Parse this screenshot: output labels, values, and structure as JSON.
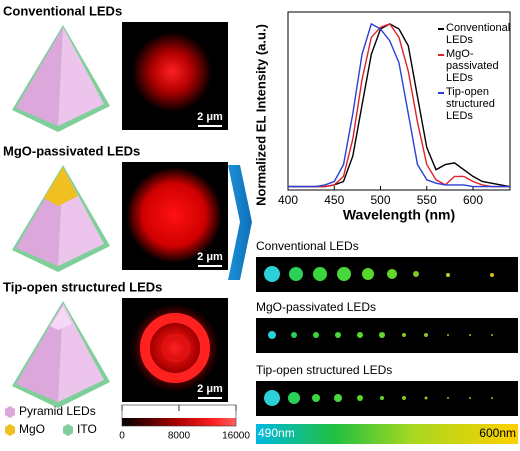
{
  "chart_data": {
    "type": "line",
    "xlabel": "Wavelength (nm)",
    "ylabel": "Normalized EL Intensity (a.u.)",
    "x": [
      400,
      410,
      420,
      430,
      440,
      450,
      460,
      470,
      480,
      490,
      500,
      510,
      520,
      530,
      540,
      550,
      560,
      570,
      580,
      590,
      600,
      610,
      620,
      630,
      640
    ],
    "xlim": [
      400,
      640
    ],
    "xticks": [
      400,
      450,
      500,
      550,
      600
    ],
    "ylim": [
      0,
      1.05
    ],
    "series": [
      {
        "name": "Conventional LEDs",
        "color": "#000000",
        "values": [
          0.02,
          0.02,
          0.02,
          0.02,
          0.02,
          0.03,
          0.05,
          0.2,
          0.5,
          0.8,
          0.95,
          0.98,
          0.95,
          0.85,
          0.55,
          0.25,
          0.12,
          0.15,
          0.16,
          0.12,
          0.08,
          0.05,
          0.04,
          0.03,
          0.02
        ]
      },
      {
        "name": "MgO-passivated LEDs",
        "color": "#e0202a",
        "values": [
          0.02,
          0.02,
          0.02,
          0.02,
          0.02,
          0.03,
          0.08,
          0.3,
          0.65,
          0.9,
          0.96,
          0.98,
          0.9,
          0.7,
          0.4,
          0.15,
          0.06,
          0.03,
          0.08,
          0.08,
          0.05,
          0.03,
          0.02,
          0.02,
          0.02
        ]
      },
      {
        "name": "Tip-open structured LEDs",
        "color": "#2a3fd8",
        "values": [
          0.02,
          0.02,
          0.02,
          0.02,
          0.03,
          0.05,
          0.15,
          0.45,
          0.8,
          0.98,
          0.95,
          0.88,
          0.75,
          0.45,
          0.15,
          0.06,
          0.04,
          0.03,
          0.03,
          0.03,
          0.02,
          0.02,
          0.02,
          0.02,
          0.02
        ]
      }
    ]
  },
  "panels": [
    {
      "label": "Conventional LEDs",
      "scale": "2 μm"
    },
    {
      "label": "MgO-passivated LEDs",
      "scale": "2 μm"
    },
    {
      "label": "Tip-open structured LEDs",
      "scale": "2 μm"
    }
  ],
  "legend": [
    "Pyramid LEDs",
    "MgO",
    "ITO"
  ],
  "colorbar": {
    "lim": [
      0,
      16000
    ],
    "ticks": [
      0,
      8000,
      16000
    ]
  },
  "strips": [
    "Conventional LEDs",
    "MgO-passivated LEDs",
    "Tip-open structured LEDs"
  ],
  "spectrum": {
    "start": "490nm",
    "end": "600nm"
  }
}
